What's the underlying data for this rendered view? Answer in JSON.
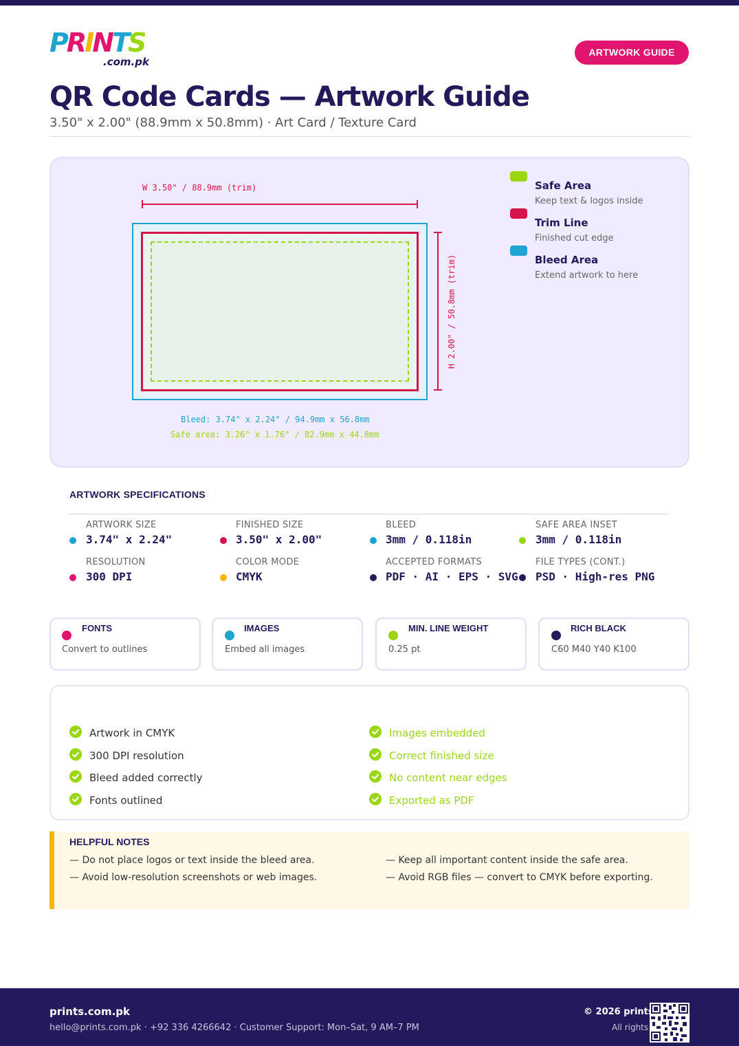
{
  "brand": {
    "logo_text": "PRINTS",
    "logo_domain": ".com.pk",
    "badge": "ARTWORK GUIDE",
    "logo_colors": [
      "#1ea4d1",
      "#e1156f",
      "#f5b800",
      "#9ad614"
    ]
  },
  "header": {
    "title": "QR Code Cards — Artwork Guide",
    "subtitle": "3.50\" x 2.00\" (88.9mm x 50.8mm) · Art Card / Texture Card"
  },
  "diagram": {
    "width_label": "W 3.50\" / 88.9mm (trim)",
    "height_label": "H 2.00\" / 50.8mm (trim)",
    "bleed_note": "Bleed: 3.74\" x 2.24\" / 94.9mm x 56.8mm",
    "safe_note": "Safe area: 3.26\" x 1.76\" / 82.9mm x 44.8mm",
    "legend": [
      {
        "title": "Safe Area",
        "desc": "Keep text & logos inside",
        "color": "#9ad614"
      },
      {
        "title": "Trim Line",
        "desc": "Finished cut edge",
        "color": "#d6134a"
      },
      {
        "title": "Bleed Area",
        "desc": "Extend artwork to here",
        "color": "#1ea4d1"
      }
    ]
  },
  "specs": {
    "heading": "ARTWORK SPECIFICATIONS",
    "items": [
      {
        "label": "ARTWORK SIZE",
        "value": "3.74\" x 2.24\"",
        "color": "#1ea4d1"
      },
      {
        "label": "FINISHED SIZE",
        "value": "3.50\" x 2.00\"",
        "color": "#d6134a"
      },
      {
        "label": "BLEED",
        "value": "3mm / 0.118in",
        "color": "#1ea4d1"
      },
      {
        "label": "SAFE AREA INSET",
        "value": "3mm / 0.118in",
        "color": "#9ad614"
      },
      {
        "label": "RESOLUTION",
        "value": "300 DPI",
        "color": "#e1156f"
      },
      {
        "label": "COLOR MODE",
        "value": "CMYK",
        "color": "#f5b800"
      },
      {
        "label": "ACCEPTED FORMATS",
        "value": "PDF · AI · EPS · SVG",
        "color": "#231a5c"
      },
      {
        "label": "FILE TYPES (CONT.)",
        "value": "PSD · High-res PNG",
        "color": "#231a5c"
      }
    ]
  },
  "cards": [
    {
      "title": "FONTS",
      "desc": "Convert to outlines",
      "color": "#e1156f"
    },
    {
      "title": "IMAGES",
      "desc": "Embed all images",
      "color": "#1ea4d1"
    },
    {
      "title": "MIN. LINE WEIGHT",
      "desc": "0.25 pt",
      "color": "#9ad614"
    },
    {
      "title": "RICH BLACK",
      "desc": "C60 M40 Y40 K100",
      "color": "#231a5c"
    }
  ],
  "checklist": {
    "left": [
      "Artwork in CMYK",
      "300 DPI resolution",
      "Bleed added correctly",
      "Fonts outlined"
    ],
    "right": [
      "Images embedded",
      "Correct finished size",
      "No content near edges",
      "Exported as PDF"
    ]
  },
  "notes": {
    "heading": "HELPFUL NOTES",
    "left": [
      "— Do not place logos or text inside the bleed area.",
      "— Avoid low-resolution screenshots or web images."
    ],
    "right": [
      "— Keep all important content inside the safe area.",
      "— Avoid RGB files — convert to CMYK before exporting."
    ]
  },
  "footer": {
    "name": "prints.com.pk",
    "contact": "hello@prints.com.pk · +92 336 4266642 · Customer Support: Mon–Sat, 9 AM–7 PM",
    "copyright": "© 2026 prints.com.pk",
    "rights": "All rights reserved"
  }
}
